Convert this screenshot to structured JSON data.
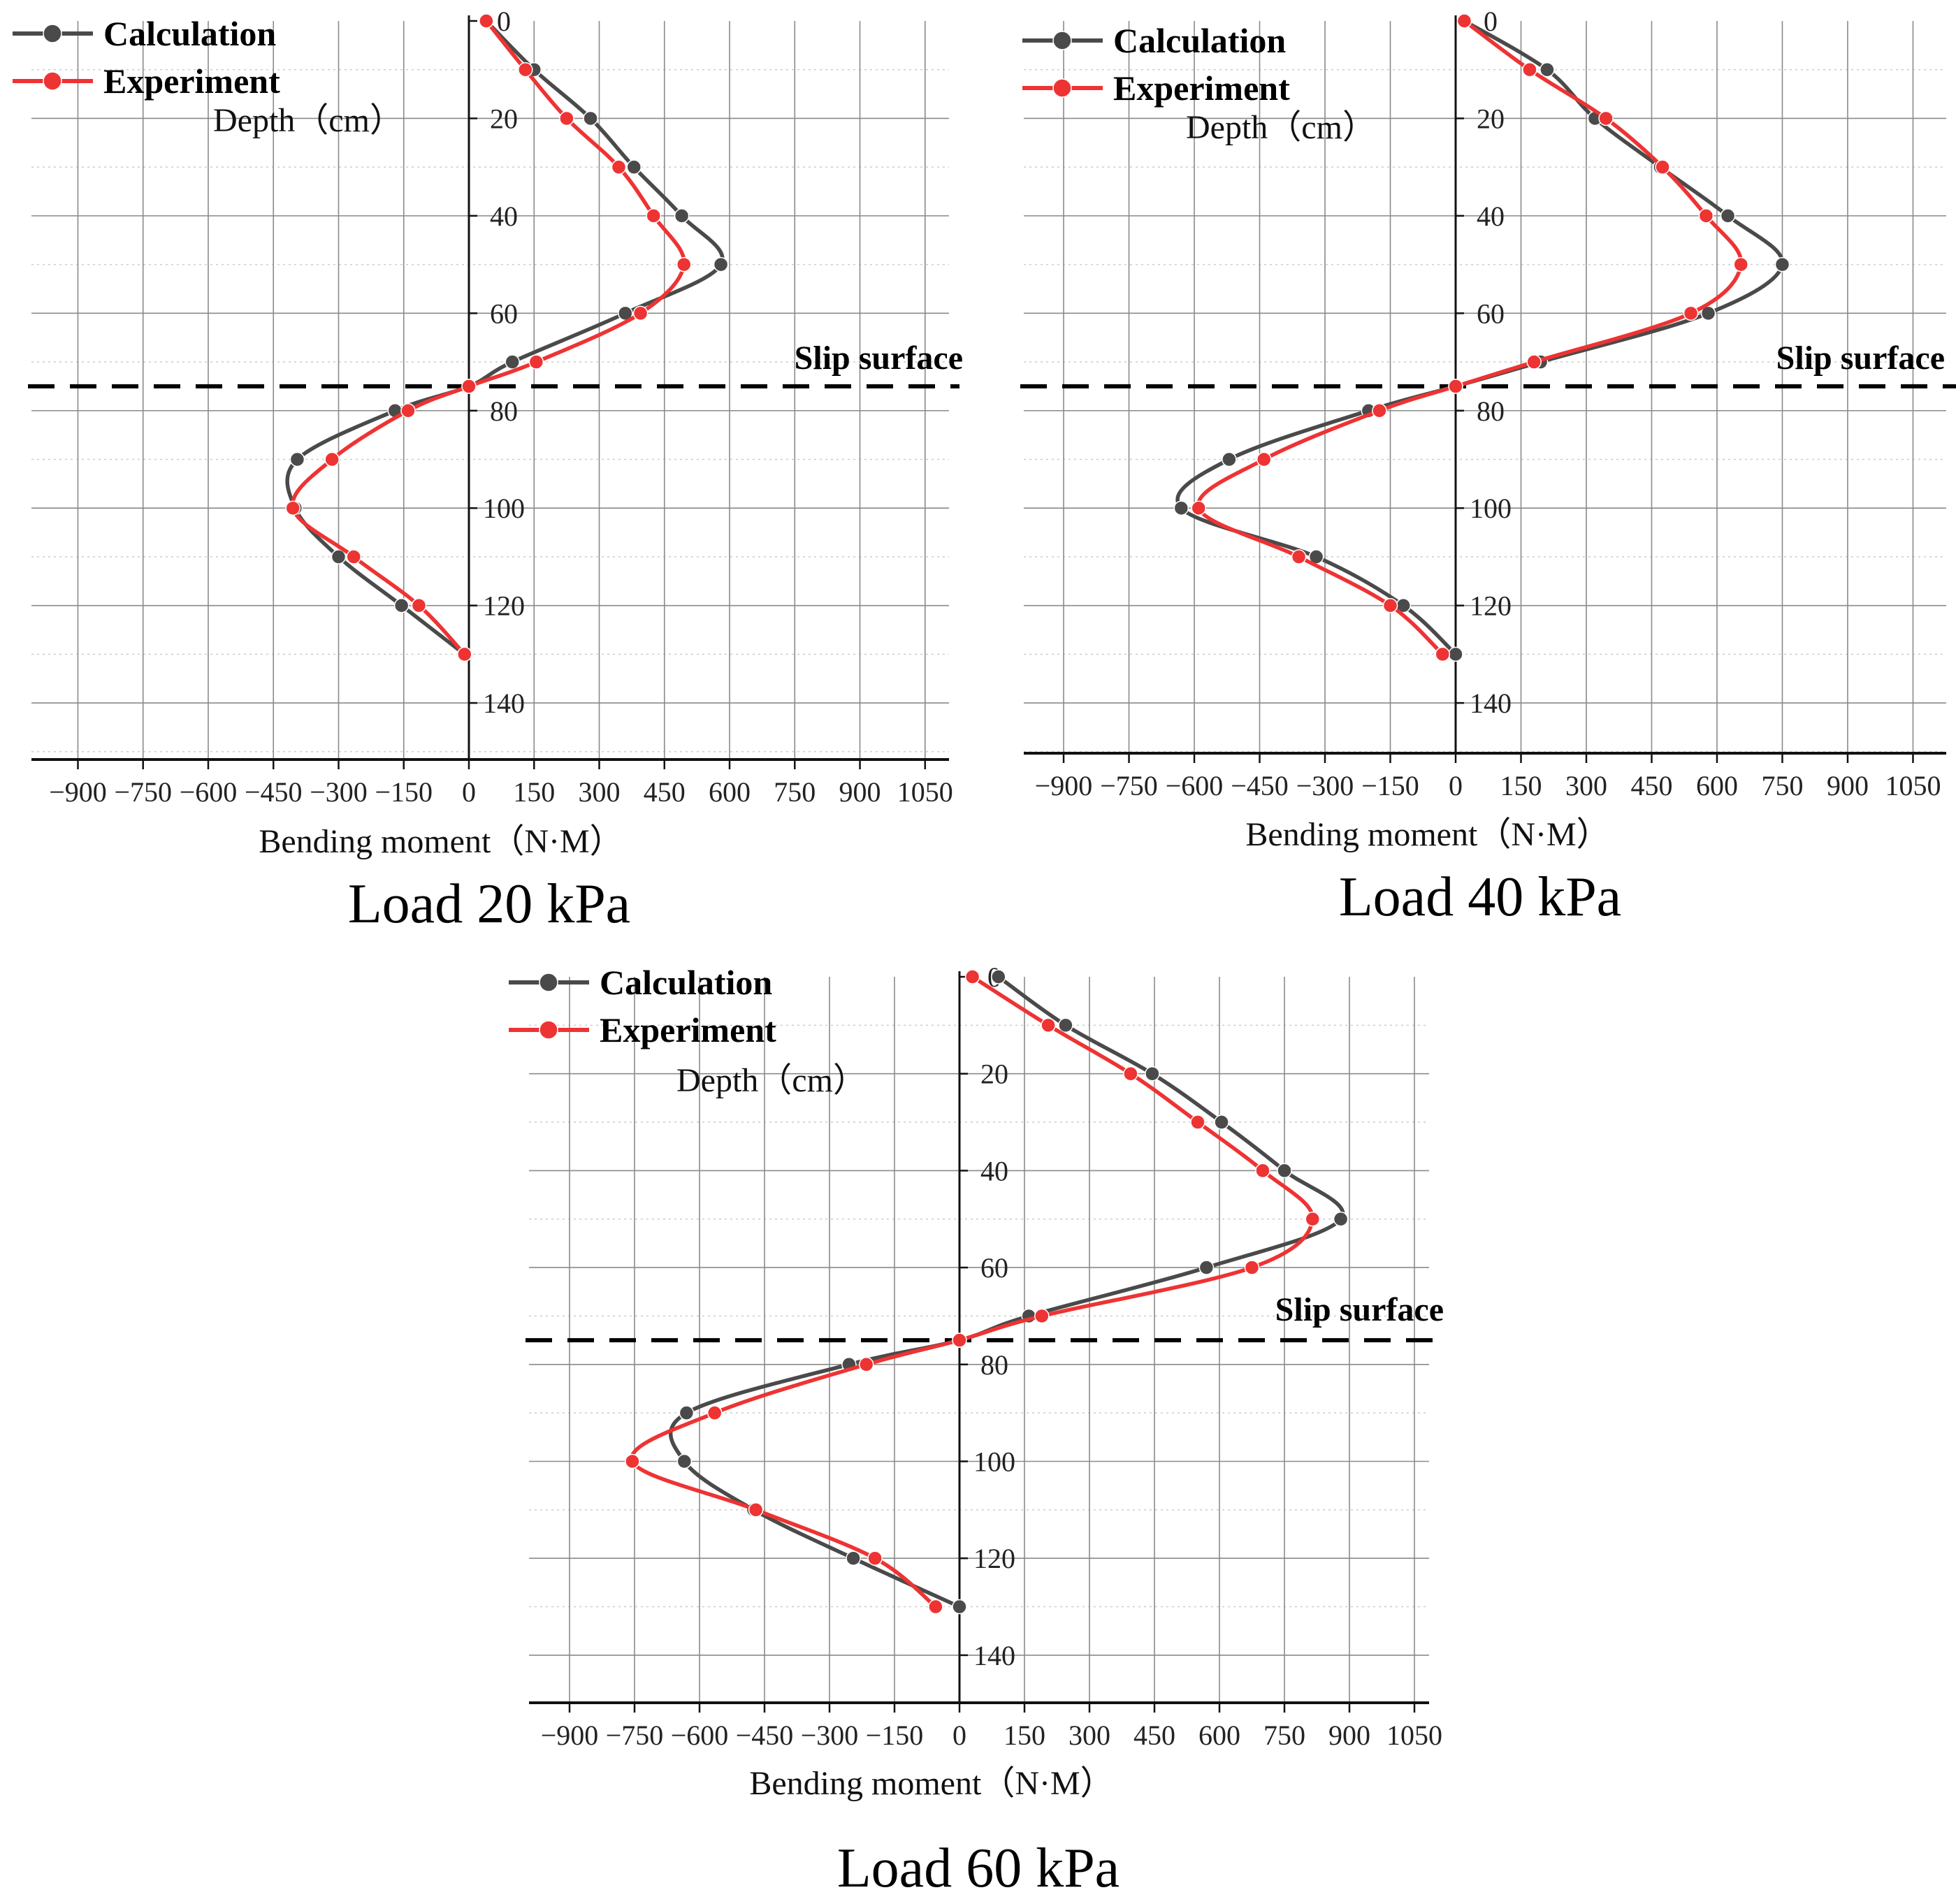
{
  "chart_data": [
    {
      "type": "line",
      "caption": "Load 20 kPa",
      "xlabel": "Bending moment（N·M）",
      "ylabel": "Depth（cm）",
      "xlim": [
        -1000,
        1100
      ],
      "ylim": [
        0,
        150
      ],
      "y_inverted": true,
      "xticks": [
        -900,
        -750,
        -600,
        -450,
        -300,
        -150,
        0,
        150,
        300,
        450,
        600,
        750,
        900,
        1050
      ],
      "xtick_labels": [
        "−900",
        "−750",
        "−600",
        "−450",
        "−300",
        "−150",
        "0",
        "150",
        "300",
        "450",
        "600",
        "750",
        "900",
        "1050"
      ],
      "yticks": [
        0,
        20,
        40,
        60,
        80,
        100,
        120,
        140
      ],
      "ytick_labels": [
        "0",
        "20",
        "40",
        "60",
        "80",
        "100",
        "120",
        "140"
      ],
      "grid": true,
      "legend_position": "top-left",
      "annotation": {
        "text": "Slip surface",
        "depth": 75
      },
      "series": [
        {
          "name": "Calculation",
          "color": "#4a4a4a",
          "points": [
            [
              40,
              0
            ],
            [
              150,
              10
            ],
            [
              280,
              20
            ],
            [
              380,
              30
            ],
            [
              490,
              40
            ],
            [
              580,
              50
            ],
            [
              360,
              60
            ],
            [
              100,
              70
            ],
            [
              0,
              75
            ],
            [
              -170,
              80
            ],
            [
              -395,
              90
            ],
            [
              -400,
              100
            ],
            [
              -300,
              110
            ],
            [
              -155,
              120
            ],
            [
              -10,
              130
            ]
          ]
        },
        {
          "name": "Experiment",
          "color": "#ee3333",
          "points": [
            [
              40,
              0
            ],
            [
              130,
              10
            ],
            [
              225,
              20
            ],
            [
              345,
              30
            ],
            [
              425,
              40
            ],
            [
              495,
              50
            ],
            [
              395,
              60
            ],
            [
              155,
              70
            ],
            [
              0,
              75
            ],
            [
              -140,
              80
            ],
            [
              -315,
              90
            ],
            [
              -405,
              100
            ],
            [
              -265,
              110
            ],
            [
              -115,
              120
            ],
            [
              -10,
              130
            ]
          ]
        }
      ]
    },
    {
      "type": "line",
      "caption": "Load 40 kPa",
      "xlabel": "Bending moment（N·M）",
      "ylabel": "Depth（cm）",
      "xlim": [
        -1000,
        1100
      ],
      "ylim": [
        0,
        150
      ],
      "y_inverted": true,
      "xticks": [
        -900,
        -750,
        -600,
        -450,
        -300,
        -150,
        0,
        150,
        300,
        450,
        600,
        750,
        900,
        1050
      ],
      "xtick_labels": [
        "−900",
        "−750",
        "−600",
        "−450",
        "−300",
        "−150",
        "0",
        "150",
        "300",
        "450",
        "600",
        "750",
        "900",
        "1050"
      ],
      "yticks": [
        0,
        20,
        40,
        60,
        80,
        100,
        120,
        140
      ],
      "ytick_labels": [
        "0",
        "20",
        "40",
        "60",
        "80",
        "100",
        "120",
        "140"
      ],
      "grid": true,
      "legend_position": "top-left",
      "annotation": {
        "text": "Slip surface",
        "depth": 75
      },
      "series": [
        {
          "name": "Calculation",
          "color": "#4a4a4a",
          "points": [
            [
              20,
              0
            ],
            [
              210,
              10
            ],
            [
              320,
              20
            ],
            [
              470,
              30
            ],
            [
              625,
              40
            ],
            [
              750,
              50
            ],
            [
              580,
              60
            ],
            [
              195,
              70
            ],
            [
              0,
              75
            ],
            [
              -200,
              80
            ],
            [
              -520,
              90
            ],
            [
              -630,
              100
            ],
            [
              -320,
              110
            ],
            [
              -120,
              120
            ],
            [
              0,
              130
            ]
          ]
        },
        {
          "name": "Experiment",
          "color": "#ee3333",
          "points": [
            [
              20,
              0
            ],
            [
              170,
              10
            ],
            [
              345,
              20
            ],
            [
              475,
              30
            ],
            [
              575,
              40
            ],
            [
              655,
              50
            ],
            [
              540,
              60
            ],
            [
              180,
              70
            ],
            [
              0,
              75
            ],
            [
              -175,
              80
            ],
            [
              -440,
              90
            ],
            [
              -590,
              100
            ],
            [
              -360,
              110
            ],
            [
              -150,
              120
            ],
            [
              -30,
              130
            ]
          ]
        }
      ]
    },
    {
      "type": "line",
      "caption": "Load 60 kPa",
      "xlabel": "Bending moment（N·M）",
      "ylabel": "Depth（cm）",
      "xlim": [
        -1000,
        1100
      ],
      "ylim": [
        0,
        150
      ],
      "y_inverted": true,
      "xticks": [
        -900,
        -750,
        -600,
        -450,
        -300,
        -150,
        0,
        150,
        300,
        450,
        600,
        750,
        900,
        1050
      ],
      "xtick_labels": [
        "−900",
        "−750",
        "−600",
        "−450",
        "−300",
        "−150",
        "0",
        "150",
        "300",
        "450",
        "600",
        "750",
        "900",
        "1050"
      ],
      "yticks": [
        0,
        20,
        40,
        60,
        80,
        100,
        120,
        140
      ],
      "ytick_labels": [
        "0",
        "20",
        "40",
        "60",
        "80",
        "100",
        "120",
        "140"
      ],
      "grid": true,
      "legend_position": "top-left",
      "annotation": {
        "text": "Slip surface",
        "depth": 75
      },
      "series": [
        {
          "name": "Calculation",
          "color": "#4a4a4a",
          "points": [
            [
              90,
              0
            ],
            [
              245,
              10
            ],
            [
              445,
              20
            ],
            [
              605,
              30
            ],
            [
              750,
              40
            ],
            [
              880,
              50
            ],
            [
              570,
              60
            ],
            [
              160,
              70
            ],
            [
              0,
              75
            ],
            [
              -255,
              80
            ],
            [
              -630,
              90
            ],
            [
              -635,
              100
            ],
            [
              -475,
              110
            ],
            [
              -245,
              120
            ],
            [
              0,
              130
            ]
          ]
        },
        {
          "name": "Experiment",
          "color": "#ee3333",
          "points": [
            [
              30,
              0
            ],
            [
              205,
              10
            ],
            [
              395,
              20
            ],
            [
              550,
              30
            ],
            [
              700,
              40
            ],
            [
              815,
              50
            ],
            [
              675,
              60
            ],
            [
              190,
              70
            ],
            [
              0,
              75
            ],
            [
              -215,
              80
            ],
            [
              -565,
              90
            ],
            [
              -755,
              100
            ],
            [
              -470,
              110
            ],
            [
              -195,
              120
            ],
            [
              -55,
              130
            ]
          ]
        }
      ]
    }
  ]
}
